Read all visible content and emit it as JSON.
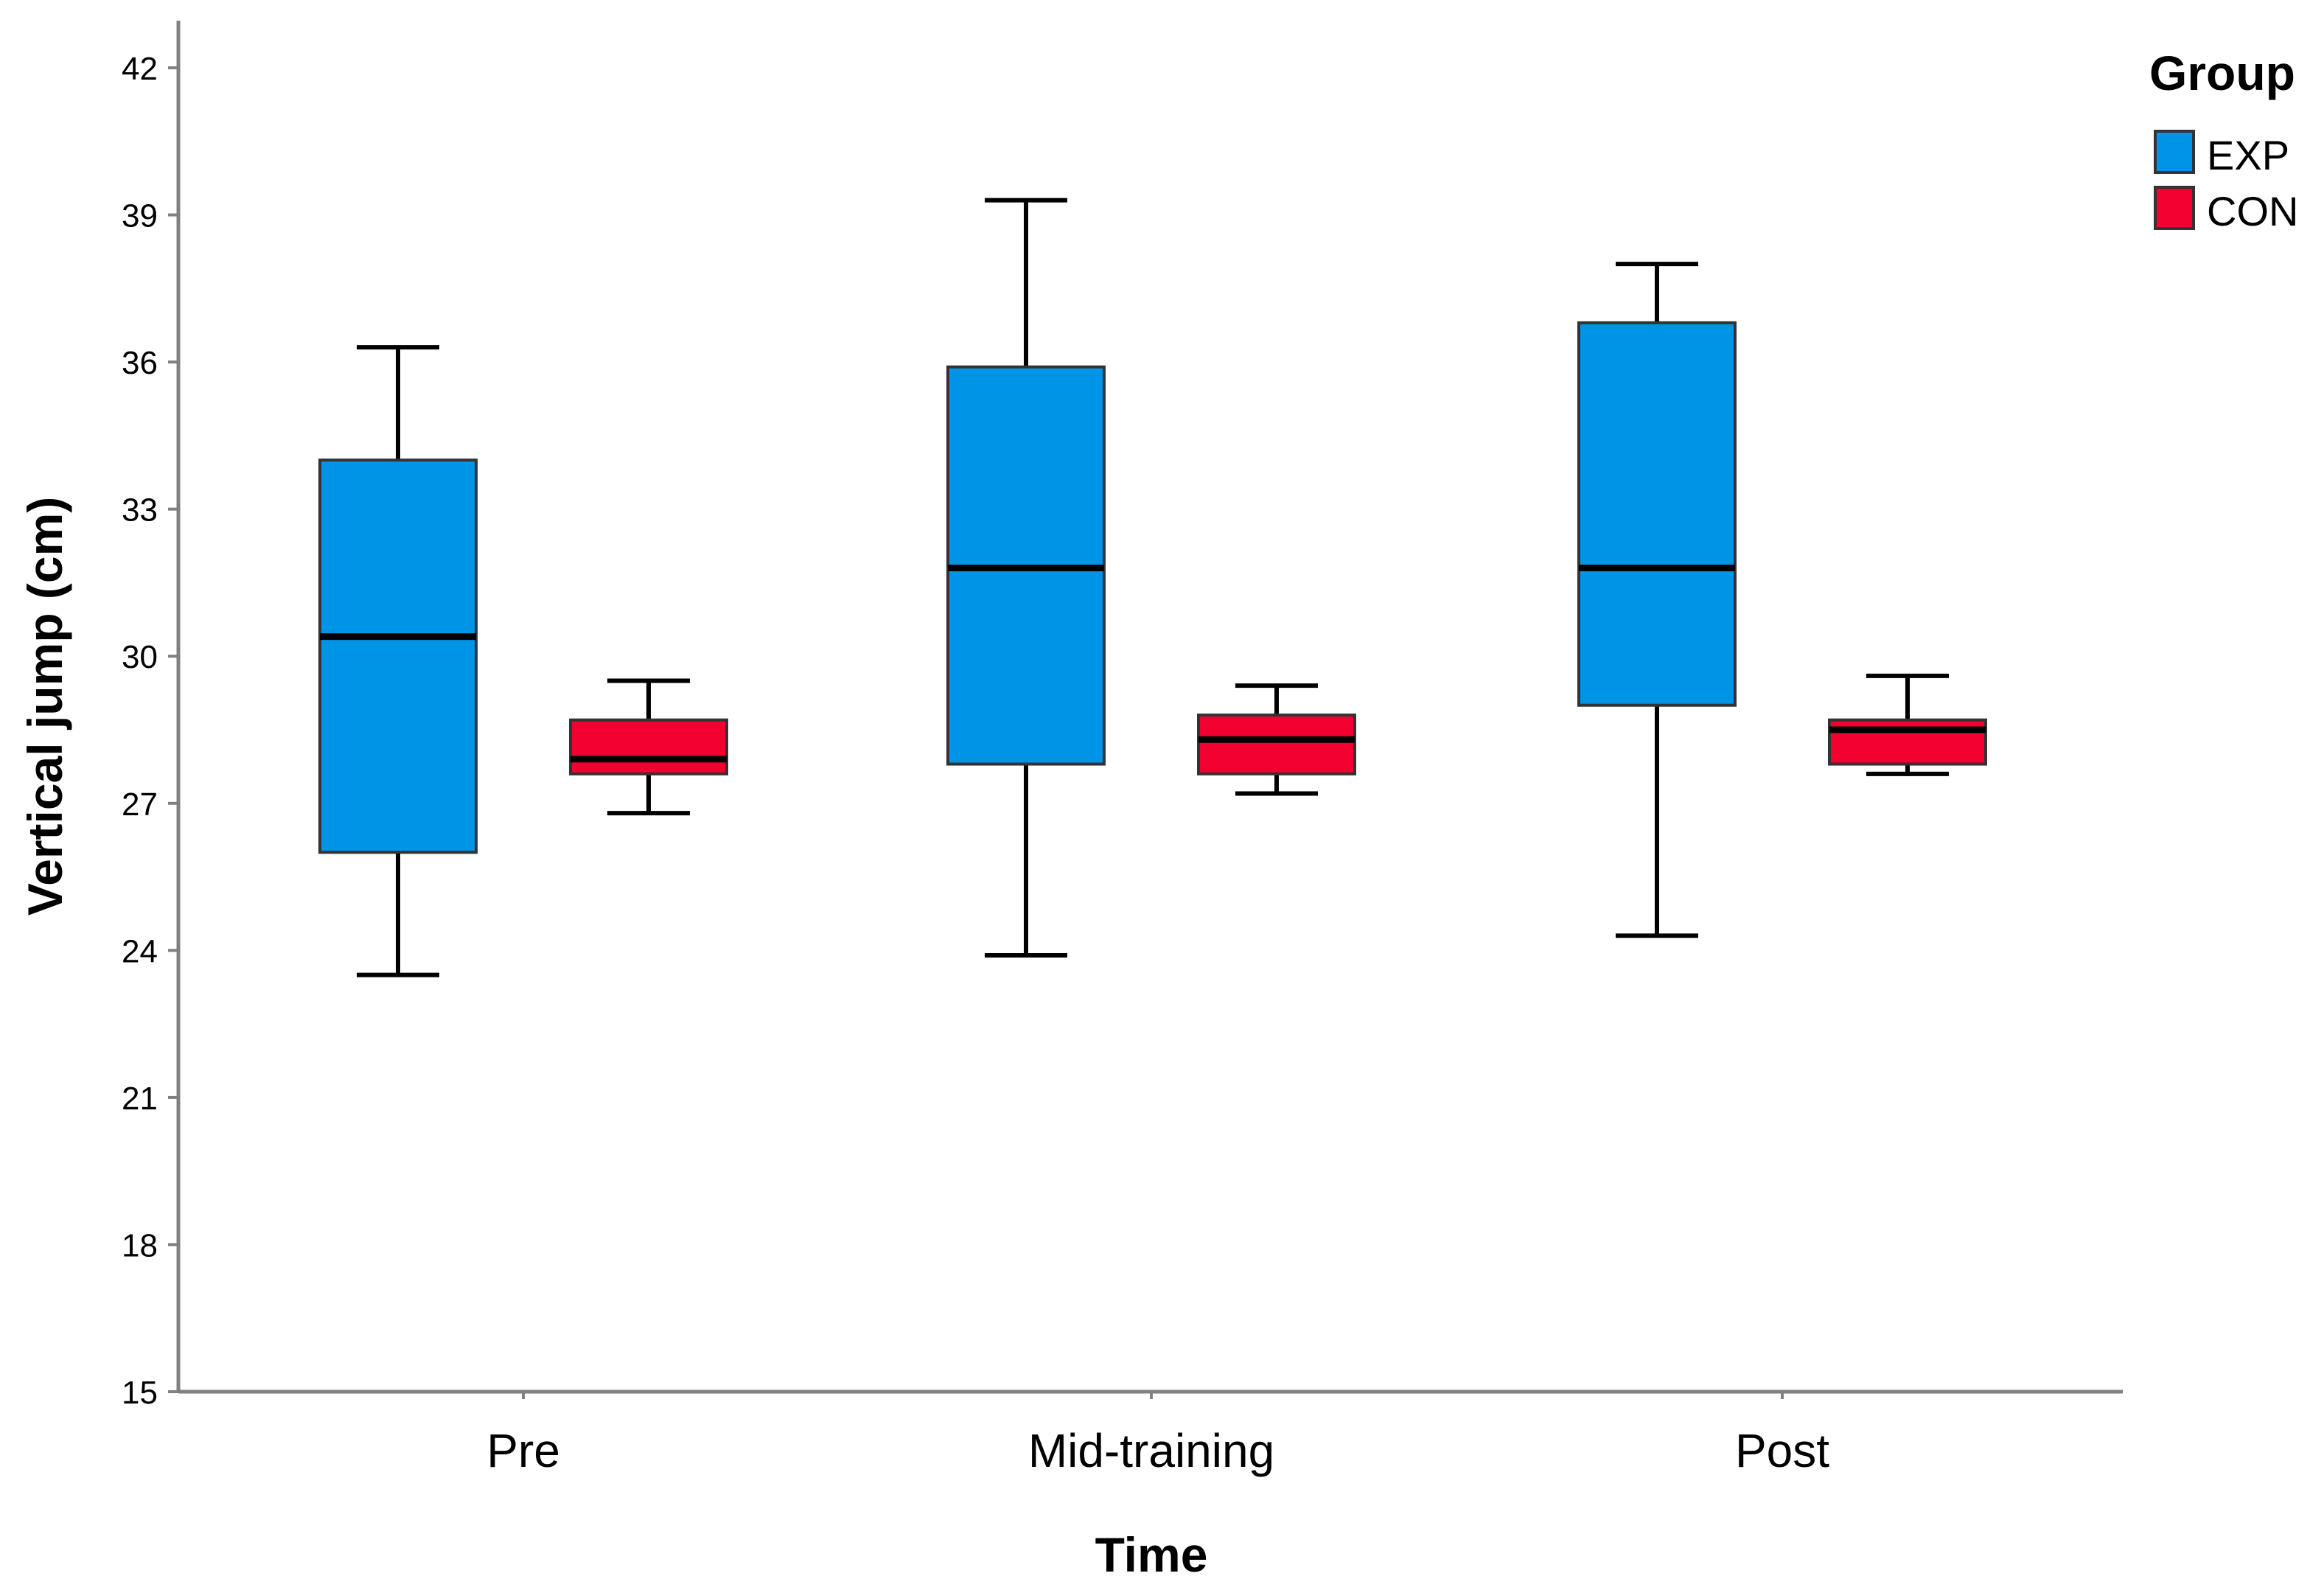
{
  "chart_data": {
    "type": "boxplot",
    "title": "",
    "xlabel": "Time",
    "ylabel": "Vertical jump (cm)",
    "ylim": [
      15,
      42
    ],
    "yticks": [
      15,
      18,
      21,
      24,
      27,
      30,
      33,
      36,
      39,
      42
    ],
    "categories": [
      "Pre",
      "Mid-training",
      "Post"
    ],
    "legend": {
      "title": "Group",
      "position": "top-right"
    },
    "series": [
      {
        "name": "EXP",
        "color": "#0094e6",
        "boxes": [
          {
            "min": 23.5,
            "q1": 26.0,
            "median": 30.4,
            "q3": 34.0,
            "max": 36.3
          },
          {
            "min": 23.9,
            "q1": 27.8,
            "median": 31.8,
            "q3": 35.9,
            "max": 39.3
          },
          {
            "min": 24.3,
            "q1": 29.0,
            "median": 31.8,
            "q3": 36.8,
            "max": 38.0
          }
        ]
      },
      {
        "name": "CON",
        "color": "#f20030",
        "boxes": [
          {
            "min": 26.8,
            "q1": 27.6,
            "median": 27.9,
            "q3": 28.7,
            "max": 29.5
          },
          {
            "min": 27.2,
            "q1": 27.6,
            "median": 28.3,
            "q3": 28.8,
            "max": 29.4
          },
          {
            "min": 27.6,
            "q1": 27.8,
            "median": 28.5,
            "q3": 28.7,
            "max": 29.6
          }
        ]
      }
    ]
  }
}
